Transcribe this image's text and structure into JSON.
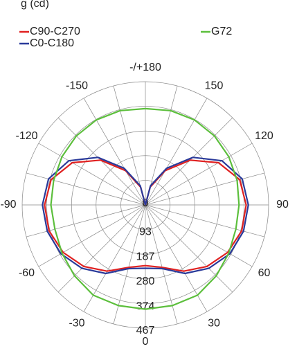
{
  "chart_data": {
    "type": "polar",
    "title": "g (cd)",
    "x": [
      -180,
      -165,
      -150,
      -135,
      -120,
      -105,
      -90,
      -75,
      -60,
      -45,
      -30,
      -15,
      0,
      15,
      30,
      45,
      60,
      75,
      90,
      105,
      120,
      135,
      150,
      165,
      180
    ],
    "series": [
      {
        "name": "C90-C270",
        "color": "#e02020",
        "values": [
          0,
          70,
          150,
          240,
          320,
          370,
          382,
          378,
          360,
          330,
          290,
          245,
          230,
          245,
          290,
          330,
          360,
          378,
          382,
          370,
          320,
          240,
          150,
          70,
          0
        ]
      },
      {
        "name": "C0-C180",
        "color": "#2a3a9a",
        "values": [
          0,
          75,
          160,
          255,
          335,
          380,
          390,
          385,
          370,
          340,
          300,
          250,
          240,
          250,
          300,
          340,
          370,
          385,
          390,
          380,
          335,
          255,
          160,
          75,
          0
        ]
      },
      {
        "name": "G72",
        "color": "#5cbf3c",
        "values": [
          365,
          370,
          372,
          370,
          365,
          360,
          358,
          355,
          365,
          380,
          395,
          395,
          395,
          395,
          395,
          380,
          365,
          355,
          355,
          360,
          365,
          370,
          372,
          370,
          365
        ]
      }
    ],
    "rlim": [
      0,
      467
    ],
    "rticks": [
      0,
      93,
      187,
      280,
      374,
      467
    ],
    "thetaticks": [
      {
        "value": 180,
        "label": "-/+180"
      },
      -150,
      -120,
      -90,
      -60,
      -30,
      0,
      30,
      60,
      90,
      120,
      150
    ]
  }
}
